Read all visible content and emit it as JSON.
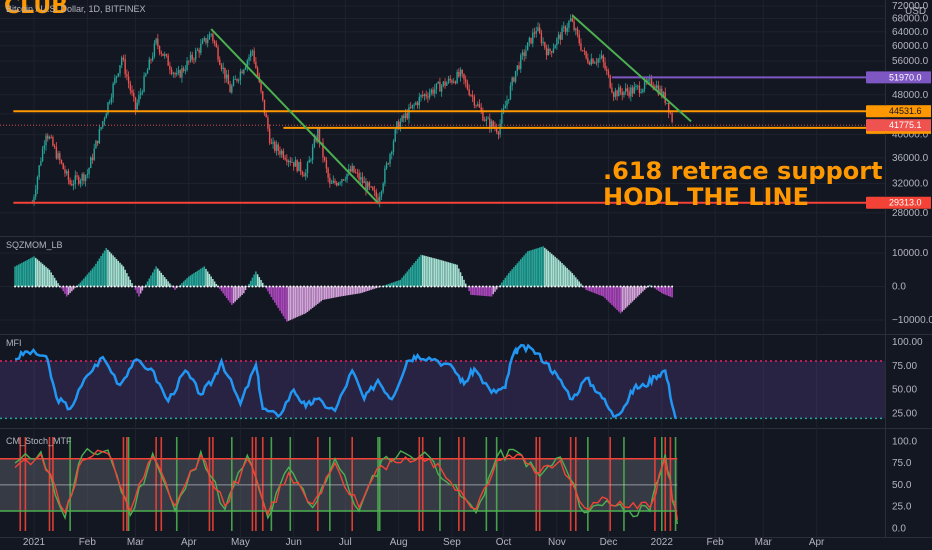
{
  "header": {
    "brand": "CLUB",
    "symbol": "Bitcoin / U.S. Dollar, 1D, BITFINEX",
    "currency": "USD"
  },
  "annotations": {
    "line1": ".618 retrace support",
    "line2": "HODL THE LINE"
  },
  "colors": {
    "background": "#131722",
    "grid": "#1e222d",
    "bull": "#26a69a",
    "bear": "#ef5350",
    "support": "#ff9800",
    "bottom_support": "#f44336",
    "trend": "#4caf50",
    "resistance": "#7e57c2",
    "mfi": "#2196f3",
    "stoch_k": "#4caf50",
    "stoch_d": "#f44336"
  },
  "chart_data": [
    {
      "type": "candlestick",
      "pane": "price",
      "title": "Bitcoin / U.S. Dollar, 1D, BITFINEX",
      "scale": "log",
      "ylim": [
        26000,
        72000
      ],
      "x_ticks": [
        "2021",
        "Feb",
        "Mar",
        "Apr",
        "May",
        "Jun",
        "Jul",
        "Aug",
        "Sep",
        "Oct",
        "Nov",
        "Dec",
        "2022",
        "Feb",
        "Mar",
        "Apr"
      ],
      "y_ticks": [
        72000,
        68000,
        64000,
        60000,
        56000,
        52000,
        48000,
        44000,
        40000,
        36000,
        32000,
        28000
      ],
      "close_path": {
        "x": [
          "2020-12-31",
          "2021-01-08",
          "2021-01-22",
          "2021-02-01",
          "2021-02-21",
          "2021-03-01",
          "2021-03-13",
          "2021-03-25",
          "2021-04-14",
          "2021-04-25",
          "2021-05-08",
          "2021-05-19",
          "2021-05-25",
          "2021-06-08",
          "2021-06-15",
          "2021-06-22",
          "2021-07-05",
          "2021-07-20",
          "2021-07-31",
          "2021-08-14",
          "2021-08-23",
          "2021-09-06",
          "2021-09-21",
          "2021-09-28",
          "2021-10-08",
          "2021-10-20",
          "2021-10-27",
          "2021-11-09",
          "2021-11-18",
          "2021-11-27",
          "2021-12-04",
          "2021-12-15",
          "2021-12-27",
          "2022-01-04",
          "2022-01-08"
        ],
        "y": [
          29300,
          40600,
          32000,
          33500,
          57000,
          45000,
          61000,
          52000,
          63500,
          49000,
          58800,
          38000,
          37000,
          33500,
          40500,
          31600,
          34000,
          29800,
          41500,
          47500,
          49500,
          52500,
          42500,
          41000,
          53500,
          65000,
          58000,
          67500,
          56500,
          56500,
          48500,
          48900,
          51000,
          46500,
          41800
        ]
      },
      "horizontal_levels": [
        {
          "value": 51970.0,
          "label": "51970.0",
          "color": "#7e57c2",
          "from": "2021-12-03"
        },
        {
          "value": 44531.6,
          "label": "44531.6",
          "color": "#ff9800",
          "from": "2020-12-20"
        },
        {
          "value": 41273.0,
          "label": "41273.0",
          "color": "#ff9800",
          "from": "2021-05-26"
        },
        {
          "value": 29313.0,
          "label": "29313.0",
          "color": "#f44336",
          "from": "2020-12-20"
        }
      ],
      "last_price": {
        "value": 41775.1,
        "label": "41775.1"
      },
      "trendlines": [
        {
          "from": [
            "2021-04-14",
            64800
          ],
          "to": [
            "2021-07-20",
            29300
          ],
          "color": "#4caf50"
        },
        {
          "from": [
            "2021-11-10",
            69000
          ],
          "to": [
            "2022-01-18",
            42500
          ],
          "color": "#4caf50"
        }
      ]
    },
    {
      "type": "histogram",
      "pane": "SQZMOM_LB",
      "title": "SQZMOM_LB",
      "ylim": [
        -13000,
        13000
      ],
      "y_ticks": [
        10000.0,
        0.0,
        -10000.0
      ],
      "y_tick_labels": [
        "10000.0",
        "0.0",
        "−10000.0"
      ],
      "keys": {
        "x": [
          "2020-12-21",
          "2021-01-01",
          "2021-01-10",
          "2021-01-20",
          "2021-01-28",
          "2021-02-05",
          "2021-02-12",
          "2021-02-22",
          "2021-03-03",
          "2021-03-13",
          "2021-03-24",
          "2021-04-01",
          "2021-04-10",
          "2021-04-18",
          "2021-04-26",
          "2021-05-03",
          "2021-05-10",
          "2021-05-20",
          "2021-05-28",
          "2021-06-08",
          "2021-06-18",
          "2021-06-28",
          "2021-07-10",
          "2021-07-22",
          "2021-08-02",
          "2021-08-14",
          "2021-08-25",
          "2021-09-04",
          "2021-09-12",
          "2021-09-24",
          "2021-10-04",
          "2021-10-15",
          "2021-10-24",
          "2021-11-02",
          "2021-11-10",
          "2021-11-18",
          "2021-11-28",
          "2021-12-08",
          "2021-12-16",
          "2021-12-25",
          "2022-01-01",
          "2022-01-08"
        ],
        "y": [
          6000,
          9000,
          5000,
          -3000,
          1200,
          6000,
          11500,
          6000,
          -3000,
          6000,
          -1000,
          3000,
          6000,
          0,
          -5500,
          -2000,
          4500,
          -4000,
          -10500,
          -8000,
          -4000,
          -3000,
          -2000,
          0,
          2000,
          9500,
          8000,
          6500,
          -2500,
          -3000,
          4000,
          10500,
          12000,
          8000,
          4000,
          -1000,
          -3000,
          -8000,
          -4000,
          500,
          -2000,
          -3500
        ]
      }
    },
    {
      "type": "line",
      "pane": "MFI",
      "title": "MFI",
      "ylim": [
        12,
        102
      ],
      "y_ticks": [
        100.0,
        75.0,
        50.0,
        25.0
      ],
      "y_tick_labels": [
        "100.00",
        "75.00",
        "50.00",
        "25.00"
      ],
      "overbought": 80,
      "oversold": 20,
      "series": [
        {
          "x": [
            "2020-12-21",
            "2020-12-28",
            "2021-01-08",
            "2021-01-14",
            "2021-01-22",
            "2021-02-01",
            "2021-02-10",
            "2021-02-20",
            "2021-02-28",
            "2021-03-10",
            "2021-03-20",
            "2021-03-30",
            "2021-04-08",
            "2021-04-15",
            "2021-04-20",
            "2021-05-01",
            "2021-05-10",
            "2021-05-14",
            "2021-05-23",
            "2021-06-01",
            "2021-06-08",
            "2021-06-14",
            "2021-06-25",
            "2021-07-05",
            "2021-07-12",
            "2021-07-20",
            "2021-07-28",
            "2021-08-06",
            "2021-08-12",
            "2021-08-22",
            "2021-09-02",
            "2021-09-08",
            "2021-09-14",
            "2021-09-24",
            "2021-10-02",
            "2021-10-06",
            "2021-10-10",
            "2021-10-18",
            "2021-10-26",
            "2021-11-02",
            "2021-11-10",
            "2021-11-18",
            "2021-11-26",
            "2021-12-04",
            "2021-12-10",
            "2021-12-16",
            "2021-12-22",
            "2021-12-28",
            "2022-01-03",
            "2022-01-09"
          ],
          "y": [
            82,
            90,
            85,
            42,
            30,
            65,
            84,
            55,
            80,
            72,
            38,
            70,
            45,
            60,
            80,
            35,
            76,
            30,
            22,
            50,
            32,
            40,
            28,
            70,
            40,
            60,
            40,
            80,
            86,
            82,
            72,
            56,
            72,
            47,
            52,
            84,
            94,
            92,
            78,
            62,
            40,
            62,
            46,
            22,
            32,
            52,
            54,
            64,
            70,
            20
          ]
        }
      ]
    },
    {
      "type": "line",
      "pane": "CM_Stoch_MTF",
      "title": "CM_Stoch_MTF",
      "ylim": [
        -3,
        105
      ],
      "y_ticks": [
        100.0,
        75.0,
        50.0,
        25.0,
        0.0
      ],
      "y_tick_labels": [
        "100.0",
        "75.0",
        "50.0",
        "25.0",
        "0.0"
      ],
      "bands": {
        "upper": 80,
        "middle": 50,
        "lower": 20
      },
      "series": [
        {
          "name": "K",
          "x": [
            "2020-12-21",
            "2021-01-05",
            "2021-01-19",
            "2021-01-29",
            "2021-02-13",
            "2021-02-26",
            "2021-03-11",
            "2021-03-24",
            "2021-04-08",
            "2021-04-22",
            "2021-05-05",
            "2021-05-17",
            "2021-05-29",
            "2021-06-12",
            "2021-06-25",
            "2021-07-09",
            "2021-07-22",
            "2021-08-05",
            "2021-08-19",
            "2021-08-31",
            "2021-09-15",
            "2021-09-27",
            "2021-10-09",
            "2021-10-22",
            "2021-11-03",
            "2021-11-17",
            "2021-11-30",
            "2021-12-13",
            "2021-12-25",
            "2022-01-03",
            "2022-01-10"
          ],
          "y": [
            75,
            88,
            12,
            84,
            90,
            15,
            86,
            20,
            88,
            22,
            84,
            12,
            70,
            24,
            80,
            20,
            78,
            86,
            82,
            50,
            18,
            82,
            88,
            60,
            82,
            18,
            32,
            20,
            20,
            85,
            5
          ]
        },
        {
          "name": "D",
          "x": [
            "2020-12-21",
            "2021-01-05",
            "2021-01-19",
            "2021-01-29",
            "2021-02-13",
            "2021-02-26",
            "2021-03-11",
            "2021-03-24",
            "2021-04-08",
            "2021-04-22",
            "2021-05-05",
            "2021-05-17",
            "2021-05-29",
            "2021-06-12",
            "2021-06-25",
            "2021-07-09",
            "2021-07-22",
            "2021-08-05",
            "2021-08-19",
            "2021-08-31",
            "2021-09-15",
            "2021-09-27",
            "2021-10-09",
            "2021-10-22",
            "2021-11-03",
            "2021-11-17",
            "2021-11-30",
            "2021-12-13",
            "2021-12-25",
            "2022-01-03",
            "2022-01-10"
          ],
          "y": [
            70,
            85,
            18,
            78,
            86,
            20,
            82,
            26,
            84,
            26,
            80,
            16,
            64,
            28,
            75,
            24,
            72,
            82,
            80,
            54,
            22,
            78,
            85,
            64,
            78,
            24,
            34,
            24,
            24,
            80,
            10
          ]
        }
      ],
      "signals": {
        "sell": [
          "2020-12-24",
          "2020-12-27",
          "2021-01-10",
          "2021-01-12",
          "2021-02-22",
          "2021-02-24",
          "2021-03-13",
          "2021-03-16",
          "2021-04-13",
          "2021-04-15",
          "2021-05-08",
          "2021-05-10",
          "2021-05-14",
          "2021-06-15",
          "2021-07-05",
          "2021-08-13",
          "2021-08-15",
          "2021-09-05",
          "2021-09-08",
          "2021-10-20",
          "2021-10-22",
          "2021-11-09",
          "2021-11-12",
          "2021-12-02",
          "2021-12-28",
          "2022-01-03",
          "2022-01-06"
        ],
        "buy": [
          "2021-01-22",
          "2021-02-25",
          "2021-03-25",
          "2021-04-26",
          "2021-05-19",
          "2021-05-30",
          "2021-06-22",
          "2021-07-20",
          "2021-07-21",
          "2021-08-25",
          "2021-09-21",
          "2021-09-27",
          "2021-11-19",
          "2021-12-10",
          "2022-01-01",
          "2022-01-09"
        ]
      }
    }
  ]
}
